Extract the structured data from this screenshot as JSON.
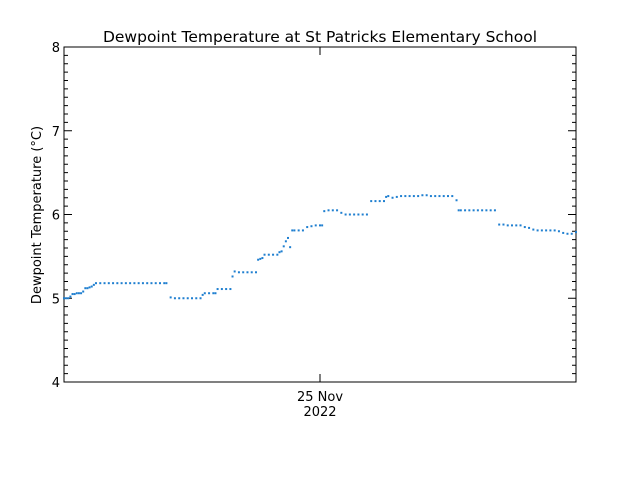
{
  "chart_data": {
    "type": "scatter",
    "title": "Dewpoint Temperature at St Patricks Elementary School",
    "xlabel": "",
    "ylabel": "Dewpoint Temperature (°C)",
    "ylim": [
      4,
      8
    ],
    "xlim": [
      0,
      24
    ],
    "yticks": [
      4,
      5,
      6,
      7,
      8
    ],
    "xtick_labels": [
      {
        "x": 12,
        "lines": [
          "25 Nov",
          "2022"
        ]
      }
    ],
    "grid": false,
    "marker_color": "#1f7fd0",
    "points": [
      [
        0.0,
        5.0
      ],
      [
        0.1,
        5.0
      ],
      [
        0.2,
        5.0
      ],
      [
        0.3,
        5.02
      ],
      [
        0.4,
        5.05
      ],
      [
        0.5,
        5.05
      ],
      [
        0.6,
        5.06
      ],
      [
        0.7,
        5.06
      ],
      [
        0.8,
        5.06
      ],
      [
        0.9,
        5.08
      ],
      [
        1.0,
        5.12
      ],
      [
        1.1,
        5.12
      ],
      [
        1.2,
        5.13
      ],
      [
        1.3,
        5.14
      ],
      [
        1.4,
        5.16
      ],
      [
        1.5,
        5.18
      ],
      [
        1.7,
        5.18
      ],
      [
        1.9,
        5.18
      ],
      [
        2.1,
        5.18
      ],
      [
        2.3,
        5.18
      ],
      [
        2.5,
        5.18
      ],
      [
        2.7,
        5.18
      ],
      [
        2.9,
        5.18
      ],
      [
        3.1,
        5.18
      ],
      [
        3.3,
        5.18
      ],
      [
        3.5,
        5.18
      ],
      [
        3.7,
        5.18
      ],
      [
        3.9,
        5.18
      ],
      [
        4.1,
        5.18
      ],
      [
        4.3,
        5.18
      ],
      [
        4.5,
        5.18
      ],
      [
        4.7,
        5.18
      ],
      [
        4.8,
        5.18
      ],
      [
        5.0,
        5.01
      ],
      [
        5.2,
        5.0
      ],
      [
        5.4,
        5.0
      ],
      [
        5.6,
        5.0
      ],
      [
        5.8,
        5.0
      ],
      [
        6.0,
        5.0
      ],
      [
        6.2,
        5.0
      ],
      [
        6.4,
        5.0
      ],
      [
        6.5,
        5.04
      ],
      [
        6.6,
        5.06
      ],
      [
        6.8,
        5.06
      ],
      [
        7.0,
        5.06
      ],
      [
        7.1,
        5.06
      ],
      [
        7.2,
        5.11
      ],
      [
        7.4,
        5.11
      ],
      [
        7.6,
        5.11
      ],
      [
        7.8,
        5.11
      ],
      [
        7.9,
        5.26
      ],
      [
        8.0,
        5.32
      ],
      [
        8.2,
        5.31
      ],
      [
        8.4,
        5.31
      ],
      [
        8.6,
        5.31
      ],
      [
        8.8,
        5.31
      ],
      [
        9.0,
        5.31
      ],
      [
        9.1,
        5.46
      ],
      [
        9.2,
        5.47
      ],
      [
        9.3,
        5.48
      ],
      [
        9.4,
        5.52
      ],
      [
        9.6,
        5.52
      ],
      [
        9.8,
        5.52
      ],
      [
        10.0,
        5.52
      ],
      [
        10.1,
        5.55
      ],
      [
        10.2,
        5.56
      ],
      [
        10.3,
        5.62
      ],
      [
        10.4,
        5.68
      ],
      [
        10.5,
        5.72
      ],
      [
        10.6,
        5.61
      ],
      [
        10.7,
        5.81
      ],
      [
        10.8,
        5.81
      ],
      [
        11.0,
        5.81
      ],
      [
        11.2,
        5.81
      ],
      [
        11.4,
        5.85
      ],
      [
        11.6,
        5.86
      ],
      [
        11.8,
        5.87
      ],
      [
        12.0,
        5.87
      ],
      [
        12.1,
        5.87
      ],
      [
        12.2,
        6.04
      ],
      [
        12.4,
        6.05
      ],
      [
        12.6,
        6.05
      ],
      [
        12.8,
        6.05
      ],
      [
        13.0,
        6.02
      ],
      [
        13.2,
        6.0
      ],
      [
        13.4,
        6.0
      ],
      [
        13.6,
        6.0
      ],
      [
        13.8,
        6.0
      ],
      [
        14.0,
        6.0
      ],
      [
        14.2,
        6.0
      ],
      [
        14.4,
        6.16
      ],
      [
        14.6,
        6.16
      ],
      [
        14.8,
        6.16
      ],
      [
        15.0,
        6.16
      ],
      [
        15.1,
        6.21
      ],
      [
        15.2,
        6.22
      ],
      [
        15.4,
        6.2
      ],
      [
        15.6,
        6.21
      ],
      [
        15.8,
        6.22
      ],
      [
        16.0,
        6.22
      ],
      [
        16.2,
        6.22
      ],
      [
        16.4,
        6.22
      ],
      [
        16.6,
        6.22
      ],
      [
        16.8,
        6.23
      ],
      [
        17.0,
        6.23
      ],
      [
        17.2,
        6.22
      ],
      [
        17.4,
        6.22
      ],
      [
        17.6,
        6.22
      ],
      [
        17.8,
        6.22
      ],
      [
        18.0,
        6.22
      ],
      [
        18.2,
        6.22
      ],
      [
        18.4,
        6.17
      ],
      [
        18.5,
        6.05
      ],
      [
        18.6,
        6.05
      ],
      [
        18.8,
        6.05
      ],
      [
        19.0,
        6.05
      ],
      [
        19.2,
        6.05
      ],
      [
        19.4,
        6.05
      ],
      [
        19.6,
        6.05
      ],
      [
        19.8,
        6.05
      ],
      [
        20.0,
        6.05
      ],
      [
        20.2,
        6.05
      ],
      [
        20.4,
        5.88
      ],
      [
        20.6,
        5.88
      ],
      [
        20.8,
        5.87
      ],
      [
        21.0,
        5.87
      ],
      [
        21.2,
        5.87
      ],
      [
        21.4,
        5.87
      ],
      [
        21.6,
        5.85
      ],
      [
        21.8,
        5.84
      ],
      [
        22.0,
        5.82
      ],
      [
        22.2,
        5.81
      ],
      [
        22.4,
        5.81
      ],
      [
        22.6,
        5.81
      ],
      [
        22.8,
        5.81
      ],
      [
        23.0,
        5.81
      ],
      [
        23.2,
        5.8
      ],
      [
        23.4,
        5.78
      ],
      [
        23.6,
        5.77
      ],
      [
        23.8,
        5.77
      ],
      [
        24.0,
        5.79
      ]
    ]
  }
}
